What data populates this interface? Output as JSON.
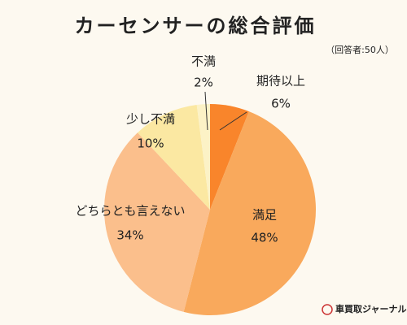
{
  "chart_data": {
    "type": "pie",
    "title": "カーセンサーの総合評価",
    "subtitle": "（回答者:50人）",
    "categories": [
      "期待以上",
      "満足",
      "どちらとも言えない",
      "少し不満",
      "不満"
    ],
    "values": [
      6,
      48,
      34,
      10,
      2
    ],
    "value_labels": [
      "6%",
      "48%",
      "34%",
      "10%",
      "2%"
    ],
    "colors": [
      "#f9852b",
      "#f9a95c",
      "#fbbf8c",
      "#fbe8a2",
      "#fcf2c6"
    ],
    "source": "車買取ジャーナル"
  }
}
